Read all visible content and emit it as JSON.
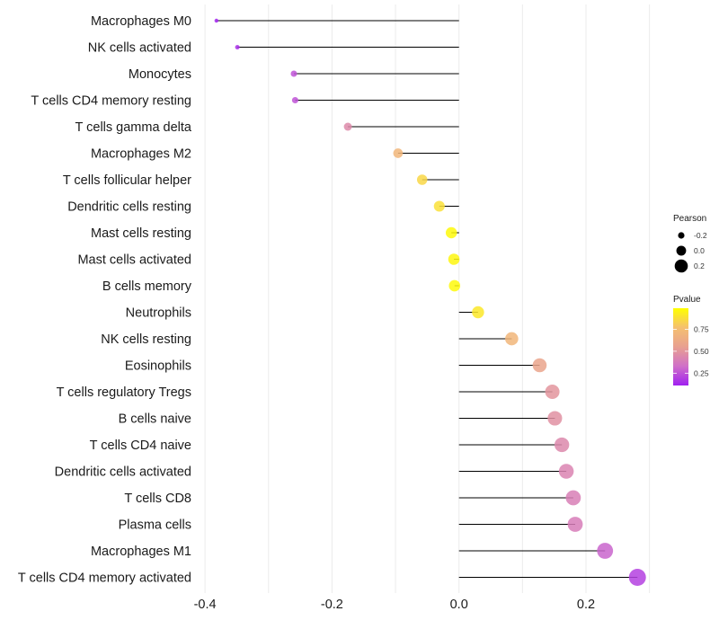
{
  "chart_data": {
    "type": "lollipop",
    "title": "",
    "xlabel": "",
    "ylabel": "",
    "xlim": [
      -0.4,
      0.3
    ],
    "x_ticks": [
      -0.4,
      -0.2,
      0.0,
      0.2
    ],
    "x_tick_labels": [
      "-0.4",
      "-0.2",
      "0.0",
      "0.2"
    ],
    "grid": true,
    "categories": [
      "Macrophages M0",
      "NK cells activated",
      "Monocytes",
      "T cells CD4 memory resting",
      "T cells gamma delta",
      "Macrophages M2",
      "T cells follicular helper",
      "Dendritic cells resting",
      "Mast cells resting",
      "Mast cells activated",
      "B cells memory",
      "Neutrophils",
      "NK cells resting",
      "Eosinophils",
      "T cells regulatory  Tregs ",
      "B cells naive",
      "T cells CD4 naive",
      "Dendritic cells activated",
      "T cells CD8",
      "Plasma cells",
      "Macrophages M1",
      "T cells CD4 memory activated"
    ],
    "series": [
      {
        "name": "Pearson",
        "values": [
          -0.382,
          -0.349,
          -0.26,
          -0.258,
          -0.175,
          -0.096,
          -0.058,
          -0.031,
          -0.012,
          -0.008,
          -0.007,
          0.03,
          0.083,
          0.127,
          0.147,
          0.151,
          0.162,
          0.169,
          0.18,
          0.183,
          0.23,
          0.281
        ]
      },
      {
        "name": "Pvalue",
        "values": [
          0.12,
          0.15,
          0.25,
          0.25,
          0.45,
          0.7,
          0.85,
          0.88,
          0.97,
          0.96,
          0.97,
          0.91,
          0.7,
          0.58,
          0.5,
          0.48,
          0.44,
          0.42,
          0.4,
          0.39,
          0.3,
          0.2
        ]
      }
    ],
    "legend": {
      "placement": "right",
      "size_legend": {
        "title": "Pearson",
        "labels": [
          "-0.2",
          "0.0",
          "0.2"
        ],
        "values": [
          -0.2,
          0.0,
          0.2
        ]
      },
      "color_legend": {
        "title": "Pvalue",
        "tick_labels": [
          "0.75",
          "0.50",
          "0.25"
        ],
        "ticks": [
          0.75,
          0.5,
          0.25
        ],
        "range": [
          0.11,
          0.99
        ],
        "colors": [
          "#A020F0",
          "#D070C8",
          "#E8A090",
          "#F5C070",
          "#FFFF00"
        ]
      }
    },
    "colors": {
      "segment": "#000000",
      "grid": "#ebebeb",
      "background": "#ffffff"
    }
  }
}
